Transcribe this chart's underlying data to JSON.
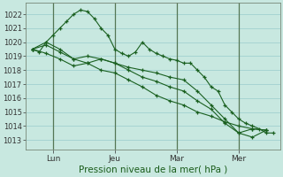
{
  "background_color": "#c8e8e0",
  "grid_color": "#99cccc",
  "line_color": "#1a6020",
  "marker_color": "#1a6020",
  "xlabel": "Pression niveau de la mer( hPa )",
  "ylim": [
    1012.3,
    1022.8
  ],
  "yticks": [
    1013,
    1014,
    1015,
    1016,
    1017,
    1018,
    1019,
    1020,
    1021,
    1022
  ],
  "series": [
    {
      "x": [
        0,
        1,
        2,
        3,
        4,
        5,
        6,
        7,
        8,
        9,
        10,
        11,
        12,
        13,
        14,
        15,
        16,
        17,
        18,
        19,
        20,
        21,
        22,
        23,
        24,
        25,
        26,
        27,
        28,
        29,
        30,
        31,
        32,
        33,
        34,
        35
      ],
      "y": [
        1019.5,
        1019.3,
        1020.0,
        1020.5,
        1021.0,
        1021.5,
        1022.0,
        1022.3,
        1022.2,
        1021.7,
        1021.0,
        1020.5,
        1019.5,
        1019.2,
        1019.0,
        1019.3,
        1020.0,
        1019.5,
        1019.2,
        1019.0,
        1018.8,
        1018.7,
        1018.5,
        1018.5,
        1018.0,
        1017.5,
        1016.8,
        1016.5,
        1015.5,
        1015.0,
        1014.5,
        1014.2,
        1014.0,
        1013.8,
        1013.5,
        1013.5
      ]
    },
    {
      "x": [
        0,
        2,
        4,
        6,
        8,
        10,
        12,
        14,
        16,
        18,
        20,
        22,
        24,
        26,
        28,
        30,
        32,
        34
      ],
      "y": [
        1019.5,
        1020.0,
        1019.5,
        1018.8,
        1018.5,
        1018.8,
        1018.5,
        1018.2,
        1018.0,
        1017.8,
        1017.5,
        1017.3,
        1016.5,
        1015.5,
        1014.5,
        1013.5,
        1013.2,
        1013.7
      ]
    },
    {
      "x": [
        0,
        2,
        4,
        6,
        8,
        10,
        12,
        14,
        16,
        18,
        20,
        22,
        24,
        26,
        28,
        30,
        32,
        34
      ],
      "y": [
        1019.5,
        1019.8,
        1019.3,
        1018.8,
        1019.0,
        1018.8,
        1018.5,
        1018.0,
        1017.5,
        1017.2,
        1016.8,
        1016.5,
        1015.8,
        1015.2,
        1014.2,
        1013.5,
        1013.8,
        1013.7
      ]
    },
    {
      "x": [
        0,
        2,
        4,
        6,
        8,
        10,
        12,
        14,
        16,
        18,
        20,
        22,
        24,
        26,
        28,
        30,
        32,
        34
      ],
      "y": [
        1019.5,
        1019.2,
        1018.8,
        1018.3,
        1018.5,
        1018.0,
        1017.8,
        1017.3,
        1016.8,
        1016.2,
        1015.8,
        1015.5,
        1015.0,
        1014.7,
        1014.3,
        1014.0,
        1013.8,
        1013.7
      ]
    }
  ],
  "vline_x": [
    3,
    12,
    21,
    30
  ],
  "xtick_positions": [
    3,
    12,
    21,
    30
  ],
  "xtick_labels": [
    "Lun",
    "Jeu",
    "Mar",
    "Mer"
  ]
}
